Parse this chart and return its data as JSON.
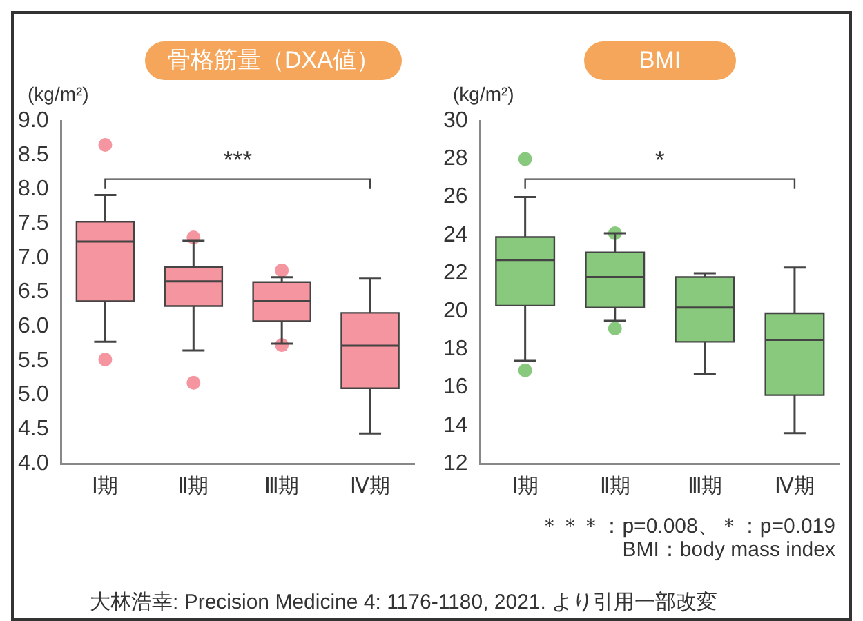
{
  "chart_data": [
    {
      "type": "box",
      "title": "骨格筋量（DXA値）",
      "ylabel": "(kg/m²)",
      "categories": [
        "Ⅰ期",
        "Ⅱ期",
        "Ⅲ期",
        "Ⅳ期"
      ],
      "color": "#f4959f",
      "boxes": [
        {
          "low": 5.78,
          "q1": 6.37,
          "median": 7.24,
          "q3": 7.53,
          "high": 7.92,
          "outliers": [
            8.65,
            5.52
          ]
        },
        {
          "low": 5.65,
          "q1": 6.3,
          "median": 6.66,
          "q3": 6.87,
          "high": 7.25,
          "outliers": [
            7.3,
            5.18
          ]
        },
        {
          "low": 5.75,
          "q1": 6.08,
          "median": 6.37,
          "q3": 6.65,
          "high": 6.72,
          "outliers": [
            6.82,
            5.73
          ]
        },
        {
          "low": 4.44,
          "q1": 5.1,
          "median": 5.72,
          "q3": 6.2,
          "high": 6.7
        }
      ],
      "ylim": [
        4,
        9
      ],
      "yticks": [
        {
          "value": 4,
          "label": "4.0"
        },
        {
          "value": 4.5,
          "label": "4.5"
        },
        {
          "value": 5,
          "label": "5.0"
        },
        {
          "value": 5.5,
          "label": "5.5"
        },
        {
          "value": 6,
          "label": "6.0"
        },
        {
          "value": 6.5,
          "label": "6.5"
        },
        {
          "value": 7,
          "label": "7.0"
        },
        {
          "value": 7.5,
          "label": "7.5"
        },
        {
          "value": 8,
          "label": "8.0"
        },
        {
          "value": 8.5,
          "label": "8.5"
        },
        {
          "value": 9,
          "label": "9.0"
        }
      ],
      "annotations": [
        "***"
      ],
      "grid": false,
      "legend": false
    },
    {
      "type": "box",
      "title": "BMI",
      "ylabel": "(kg/m²)",
      "categories": [
        "Ⅰ期",
        "Ⅱ期",
        "Ⅲ期",
        "Ⅳ期"
      ],
      "color": "#88c97e",
      "boxes": [
        {
          "low": 17.4,
          "q1": 20.3,
          "median": 22.7,
          "q3": 23.9,
          "high": 26,
          "outliers": [
            28,
            16.9
          ]
        },
        {
          "low": 19.5,
          "q1": 20.2,
          "median": 21.8,
          "q3": 23.1,
          "high": 24.1,
          "outliers": [
            24.1,
            19.1
          ]
        },
        {
          "low": 16.7,
          "q1": 18.4,
          "median": 20.2,
          "q3": 21.8,
          "high": 22
        },
        {
          "low": 13.6,
          "q1": 15.6,
          "median": 18.5,
          "q3": 19.9,
          "high": 22.3
        }
      ],
      "ylim": [
        12,
        30
      ],
      "yticks": [
        12,
        14,
        16,
        18,
        20,
        22,
        24,
        26,
        28,
        30
      ],
      "annotations": [
        "*",
        "＊＊＊：p=0.008、＊：p=0.019",
        "BMI：body mass index",
        "大林浩幸: Precision Medicine 4: 1176-1180, 2021. より引用一部改変"
      ],
      "grid": false,
      "legend": false
    }
  ]
}
